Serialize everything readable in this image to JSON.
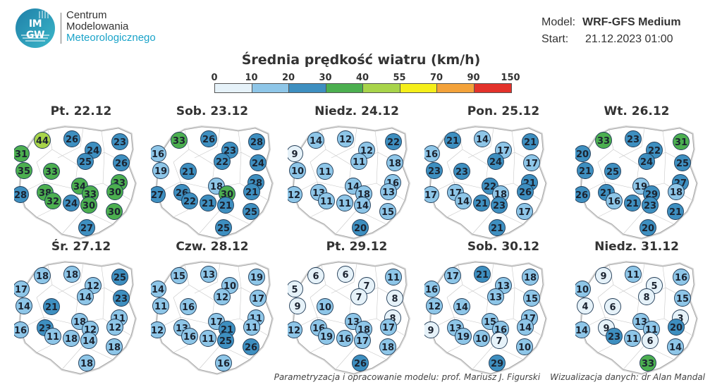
{
  "logo": {
    "abbr_top": "IM",
    "abbr_bottom": "GW",
    "name_line1": "Centrum",
    "name_line2": "Modelowania",
    "name_line3": "Meteorologicznego"
  },
  "model": {
    "model_label": "Model:",
    "model_value": "WRF-GFS Medium",
    "start_label": "Start:",
    "start_value": "21.12.2023 01:00"
  },
  "title": "Średnia prędkość wiatru (km/h)",
  "scale": {
    "ticks": [
      "0",
      "10",
      "20",
      "30",
      "40",
      "55",
      "70",
      "90",
      "150"
    ],
    "colors": [
      "#e6f2f9",
      "#8ec6e8",
      "#3e8fc0",
      "#4caf50",
      "#a8d44a",
      "#f5ef1a",
      "#f3a23a",
      "#e3322b"
    ]
  },
  "footer": {
    "credit_model": "Parametryzacja i opracowanie modelu: prof. Mariusz J. Figurski",
    "credit_viz": "Wizualizacja danych: dr Alan Mandal"
  },
  "panels": [
    {
      "date": "Pt. 22.12",
      "values": [
        44,
        26,
        23,
        31,
        24,
        26,
        25,
        35,
        33,
        33,
        34,
        28,
        38,
        33,
        30,
        32,
        24,
        30,
        30,
        27
      ]
    },
    {
      "date": "Sob. 23.12",
      "values": [
        33,
        26,
        28,
        16,
        23,
        24,
        22,
        19,
        21,
        28,
        18,
        27,
        26,
        30,
        21,
        22,
        21,
        21,
        25,
        25
      ]
    },
    {
      "date": "Niedz. 24.12",
      "values": [
        14,
        12,
        22,
        9,
        12,
        18,
        11,
        10,
        11,
        16,
        14,
        12,
        13,
        18,
        13,
        11,
        11,
        14,
        15,
        20
      ]
    },
    {
      "date": "Pon. 25.12",
      "values": [
        21,
        14,
        21,
        16,
        17,
        17,
        24,
        23,
        23,
        21,
        22,
        17,
        17,
        18,
        26,
        14,
        21,
        23,
        17,
        21
      ]
    },
    {
      "date": "Wt. 26.12",
      "values": [
        33,
        23,
        31,
        20,
        22,
        25,
        24,
        21,
        25,
        27,
        19,
        26,
        21,
        29,
        18,
        16,
        21,
        23,
        21,
        20
      ]
    },
    {
      "date": "Śr. 27.12",
      "values": [
        18,
        18,
        25,
        17,
        12,
        23,
        14,
        14,
        21,
        11,
        18,
        16,
        23,
        12,
        12,
        11,
        18,
        14,
        18,
        18
      ]
    },
    {
      "date": "Czw. 28.12",
      "values": [
        15,
        13,
        19,
        14,
        10,
        17,
        12,
        11,
        16,
        11,
        17,
        12,
        13,
        21,
        11,
        16,
        11,
        25,
        26,
        16
      ]
    },
    {
      "date": "Pt. 29.12",
      "values": [
        6,
        6,
        11,
        5,
        7,
        8,
        7,
        9,
        10,
        8,
        13,
        12,
        16,
        18,
        17,
        19,
        16,
        17,
        18,
        26
      ]
    },
    {
      "date": "Sob. 30.12",
      "values": [
        17,
        21,
        18,
        16,
        13,
        15,
        13,
        12,
        14,
        17,
        15,
        9,
        13,
        16,
        14,
        19,
        10,
        7,
        10,
        29
      ]
    },
    {
      "date": "Niedz. 31.12",
      "values": [
        9,
        11,
        16,
        10,
        5,
        15,
        8,
        4,
        6,
        3,
        13,
        14,
        9,
        11,
        20,
        23,
        11,
        6,
        14,
        33
      ]
    }
  ]
}
